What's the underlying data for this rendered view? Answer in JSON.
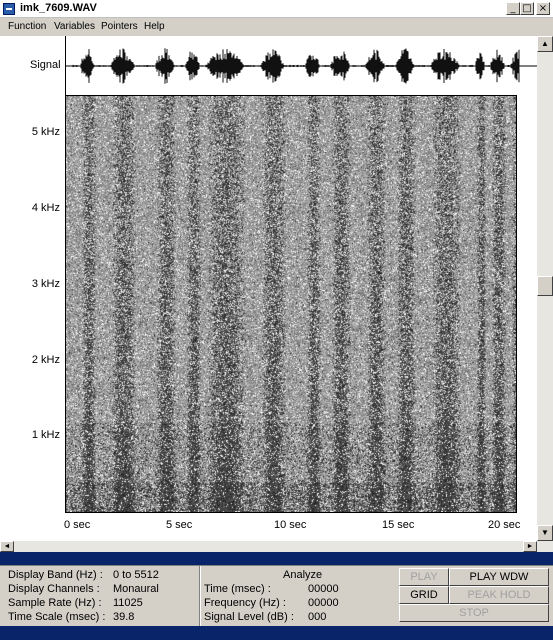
{
  "window": {
    "title": "imk_7609.WAV",
    "min_glyph": "_",
    "max_glyph": "□",
    "close_glyph": "×"
  },
  "menu": [
    "Function",
    "Variables",
    "Pointers",
    "Help"
  ],
  "plot": {
    "signal_label": "Signal",
    "freq_labels": [
      "5 kHz",
      "4 kHz",
      "3 kHz",
      "2 kHz",
      "1 kHz"
    ],
    "time_labels": [
      "0   sec",
      "5   sec",
      "10   sec",
      "15   sec",
      "20   sec"
    ]
  },
  "scroll": {
    "up": "▲",
    "down": "▼",
    "left": "◄",
    "right": "►"
  },
  "info": {
    "display_band_label": "Display Band (Hz) :",
    "display_band_value": "0 to 5512",
    "display_channels_label": "Display Channels :",
    "display_channels_value": "Monaural",
    "sample_rate_label": "Sample Rate (Hz) :",
    "sample_rate_value": "11025",
    "time_scale_label": "Time Scale (msec) :",
    "time_scale_value": "39.8"
  },
  "analyze": {
    "title": "Analyze",
    "time_label": "Time (msec) :",
    "time_value": "00000",
    "freq_label": "Frequency (Hz) :",
    "freq_value": "00000",
    "level_label": "Signal Level (dB) :",
    "level_value": "000"
  },
  "buttons": {
    "play": "PLAY",
    "play_wdw": "PLAY WDW",
    "grid": "GRID",
    "peak_hold": "PEAK HOLD",
    "stop": "STOP"
  }
}
